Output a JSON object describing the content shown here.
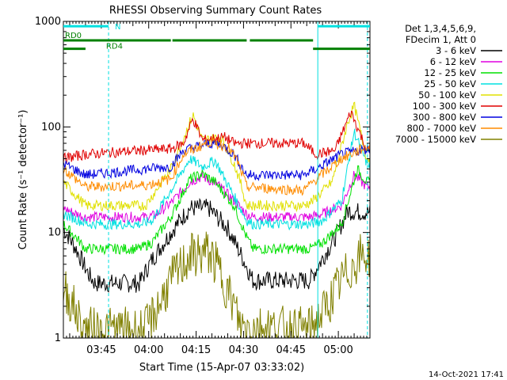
{
  "chart_data": {
    "type": "line",
    "title": "RHESSI Observing Summary Count Rates",
    "xlabel": "Start Time (15-Apr-07 03:33:02)",
    "ylabel": "Count Rate (s⁻¹ detector⁻¹)",
    "yscale": "log",
    "ylim": [
      1,
      1000
    ],
    "xlim_minutes": [
      0,
      97
    ],
    "x_ticks": [
      {
        "label": "03:45",
        "min": 12
      },
      {
        "label": "04:00",
        "min": 27
      },
      {
        "label": "04:15",
        "min": 42
      },
      {
        "label": "04:30",
        "min": 57
      },
      {
        "label": "04:45",
        "min": 72
      },
      {
        "label": "05:00",
        "min": 87
      }
    ],
    "y_ticks": [
      {
        "label": "1",
        "value": 1
      },
      {
        "label": "10",
        "value": 10
      },
      {
        "label": "100",
        "value": 100
      },
      {
        "label": "1000",
        "value": 1000
      }
    ],
    "legend_header": [
      "Det 1,3,4,5,6,9,",
      "FDecim 1, Att 0"
    ],
    "series": [
      {
        "name": "3 - 6 keV",
        "color": "#000000",
        "points": [
          [
            0,
            11
          ],
          [
            4,
            7
          ],
          [
            8,
            4
          ],
          [
            10,
            3.3
          ],
          [
            24,
            3.3
          ],
          [
            28,
            5.5
          ],
          [
            35,
            11
          ],
          [
            40,
            17
          ],
          [
            46,
            17
          ],
          [
            52,
            11
          ],
          [
            57,
            5.5
          ],
          [
            60,
            3.5
          ],
          [
            78,
            3.5
          ],
          [
            80,
            4.5
          ],
          [
            86,
            9
          ],
          [
            90,
            16
          ],
          [
            96,
            15.5
          ]
        ]
      },
      {
        "name": "6 - 12 keV",
        "color": "#e000e0",
        "points": [
          [
            0,
            17
          ],
          [
            4,
            15
          ],
          [
            7,
            14
          ],
          [
            26,
            14
          ],
          [
            29,
            14.5
          ],
          [
            34,
            19
          ],
          [
            40,
            30
          ],
          [
            44,
            34
          ],
          [
            49,
            28
          ],
          [
            54,
            20
          ],
          [
            58,
            15
          ],
          [
            60,
            14
          ],
          [
            78,
            14
          ],
          [
            82,
            15
          ],
          [
            88,
            18
          ],
          [
            92,
            35
          ],
          [
            96,
            27
          ]
        ]
      },
      {
        "name": "12 - 25 keV",
        "color": "#00e000",
        "points": [
          [
            0,
            12
          ],
          [
            4,
            9
          ],
          [
            7,
            7
          ],
          [
            24,
            7
          ],
          [
            28,
            8
          ],
          [
            34,
            14
          ],
          [
            40,
            32
          ],
          [
            44,
            36
          ],
          [
            48,
            30
          ],
          [
            54,
            18
          ],
          [
            58,
            9
          ],
          [
            60,
            7
          ],
          [
            78,
            7
          ],
          [
            82,
            8
          ],
          [
            88,
            12
          ],
          [
            93,
            40
          ],
          [
            96,
            30
          ]
        ]
      },
      {
        "name": "25 - 50 keV",
        "color": "#00e0e0",
        "points": [
          [
            0,
            15
          ],
          [
            5,
            13
          ],
          [
            8,
            12
          ],
          [
            25,
            12
          ],
          [
            28,
            13
          ],
          [
            34,
            25
          ],
          [
            40,
            50
          ],
          [
            44,
            42
          ],
          [
            48,
            48
          ],
          [
            54,
            22
          ],
          [
            58,
            13
          ],
          [
            60,
            12
          ],
          [
            78,
            12
          ],
          [
            82,
            13
          ],
          [
            88,
            20
          ],
          [
            92,
            90
          ],
          [
            96,
            45
          ]
        ]
      },
      {
        "name": "50 - 100 keV",
        "color": "#e0e000",
        "points": [
          [
            0,
            30
          ],
          [
            7,
            18
          ],
          [
            26,
            18
          ],
          [
            28,
            22
          ],
          [
            34,
            40
          ],
          [
            41,
            130
          ],
          [
            44,
            75
          ],
          [
            50,
            80
          ],
          [
            54,
            45
          ],
          [
            56,
            30
          ],
          [
            58,
            18
          ],
          [
            76,
            18
          ],
          [
            79,
            20
          ],
          [
            85,
            30
          ],
          [
            90,
            110
          ],
          [
            92,
            160
          ],
          [
            96,
            50
          ]
        ]
      },
      {
        "name": "100 - 300 keV",
        "color": "#e00000",
        "points": [
          [
            0,
            50
          ],
          [
            7,
            55
          ],
          [
            25,
            60
          ],
          [
            34,
            62
          ],
          [
            38,
            70
          ],
          [
            41,
            120
          ],
          [
            44,
            75
          ],
          [
            51,
            80
          ],
          [
            54,
            70
          ],
          [
            58,
            70
          ],
          [
            76,
            70
          ],
          [
            80,
            55
          ],
          [
            86,
            60
          ],
          [
            91,
            140
          ],
          [
            96,
            60
          ]
        ]
      },
      {
        "name": "300 - 800 keV",
        "color": "#0000e0",
        "points": [
          [
            0,
            45
          ],
          [
            7,
            35
          ],
          [
            26,
            40
          ],
          [
            34,
            42
          ],
          [
            38,
            60
          ],
          [
            46,
            70
          ],
          [
            50,
            68
          ],
          [
            54,
            55
          ],
          [
            58,
            35
          ],
          [
            76,
            35
          ],
          [
            80,
            40
          ],
          [
            88,
            55
          ],
          [
            96,
            62
          ]
        ]
      },
      {
        "name": "800 - 7000 keV",
        "color": "#ff8c00",
        "points": [
          [
            0,
            40
          ],
          [
            7,
            27
          ],
          [
            26,
            28
          ],
          [
            34,
            32
          ],
          [
            38,
            55
          ],
          [
            46,
            72
          ],
          [
            52,
            65
          ],
          [
            55,
            48
          ],
          [
            58,
            27
          ],
          [
            76,
            25
          ],
          [
            80,
            32
          ],
          [
            88,
            50
          ],
          [
            96,
            65
          ]
        ]
      },
      {
        "name": "7000 - 15000 keV",
        "color": "#808000",
        "points": [
          [
            0,
            3
          ],
          [
            4,
            1.8
          ],
          [
            6,
            1.2
          ],
          [
            26,
            1.2
          ],
          [
            30,
            2
          ],
          [
            34,
            3.5
          ],
          [
            40,
            6
          ],
          [
            46,
            6.5
          ],
          [
            50,
            4
          ],
          [
            54,
            2
          ],
          [
            56,
            1.3
          ],
          [
            78,
            1.2
          ],
          [
            82,
            1.7
          ],
          [
            88,
            3.5
          ],
          [
            94,
            6
          ],
          [
            96,
            6
          ]
        ]
      }
    ],
    "flags": [
      {
        "label": "N",
        "color": "#00e0e0",
        "segments": [
          [
            0,
            14.3
          ],
          [
            80.5,
            97
          ]
        ],
        "level": 900
      },
      {
        "label": "RD0",
        "color": "#008000",
        "segments": [
          [
            0,
            34
          ],
          [
            34.5,
            58
          ],
          [
            59,
            79
          ]
        ],
        "level": 660
      },
      {
        "label": "RD4",
        "color": "#008000",
        "segments": [
          [
            0,
            7
          ],
          [
            79,
            97
          ]
        ],
        "level": 550
      }
    ],
    "vlines": [
      {
        "min": 0,
        "color": "#00e0e0",
        "dashed": false
      },
      {
        "min": 14.3,
        "color": "#00e0e0",
        "dashed": true
      },
      {
        "min": 80.5,
        "color": "#00e0e0",
        "dashed": false
      },
      {
        "min": 96.2,
        "color": "#00e0e0",
        "dashed": true
      }
    ]
  },
  "footer": {
    "date": "14-Oct-2021 17:41"
  }
}
